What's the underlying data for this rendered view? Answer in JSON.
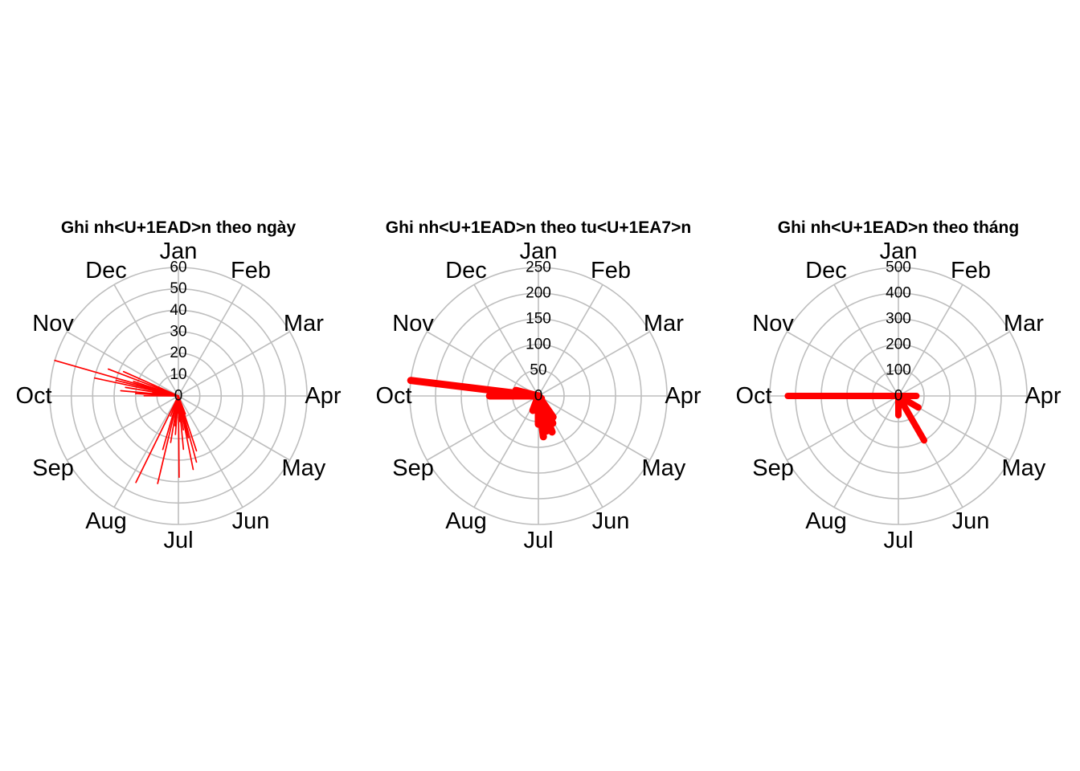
{
  "chart_data": [
    {
      "type": "line",
      "coord": "polar",
      "title": "Ghi nh<U+1EAD>n theo ngày",
      "months": [
        "Jan",
        "Feb",
        "Mar",
        "Apr",
        "May",
        "Jun",
        "Jul",
        "Aug",
        "Sep",
        "Oct",
        "Nov",
        "Dec"
      ],
      "r_ticks": [
        "0",
        "10",
        "20",
        "30",
        "40",
        "50",
        "60"
      ],
      "r_max": 60,
      "series_color": "#ff0000",
      "grid": true,
      "unit": "day",
      "data": [
        {
          "x": 162,
          "y": 9
        },
        {
          "x": 165,
          "y": 27
        },
        {
          "x": 168,
          "y": 32
        },
        {
          "x": 170,
          "y": 20
        },
        {
          "x": 172,
          "y": 35
        },
        {
          "x": 175,
          "y": 16
        },
        {
          "x": 178,
          "y": 25
        },
        {
          "x": 180,
          "y": 12
        },
        {
          "x": 183,
          "y": 38
        },
        {
          "x": 185,
          "y": 8
        },
        {
          "x": 188,
          "y": 18
        },
        {
          "x": 190,
          "y": 14
        },
        {
          "x": 193,
          "y": 22
        },
        {
          "x": 197,
          "y": 42
        },
        {
          "x": 200,
          "y": 26
        },
        {
          "x": 205,
          "y": 10
        },
        {
          "x": 210,
          "y": 45
        },
        {
          "x": 275,
          "y": 16
        },
        {
          "x": 278,
          "y": 20
        },
        {
          "x": 280,
          "y": 27
        },
        {
          "x": 282,
          "y": 12
        },
        {
          "x": 284,
          "y": 25
        },
        {
          "x": 287,
          "y": 40
        },
        {
          "x": 289,
          "y": 30
        },
        {
          "x": 291,
          "y": 60
        },
        {
          "x": 293,
          "y": 22
        },
        {
          "x": 296,
          "y": 35
        },
        {
          "x": 299,
          "y": 28
        }
      ]
    },
    {
      "type": "line",
      "coord": "polar",
      "title": "Ghi nh<U+1EAD>n theo tu<U+1EA7>n",
      "months": [
        "Jan",
        "Feb",
        "Mar",
        "Apr",
        "May",
        "Jun",
        "Jul",
        "Aug",
        "Sep",
        "Oct",
        "Nov",
        "Dec"
      ],
      "r_ticks": [
        "0",
        "50",
        "100",
        "150",
        "200",
        "250"
      ],
      "r_max": 250,
      "series_color": "#ff0000",
      "grid": true,
      "unit": "week",
      "data": [
        {
          "x": 20,
          "y": 8
        },
        {
          "x": 22,
          "y": 50
        },
        {
          "x": 23,
          "y": 60
        },
        {
          "x": 24,
          "y": 75
        },
        {
          "x": 25,
          "y": 70
        },
        {
          "x": 26,
          "y": 80
        },
        {
          "x": 27,
          "y": 55
        },
        {
          "x": 28,
          "y": 20
        },
        {
          "x": 29,
          "y": 15
        },
        {
          "x": 30,
          "y": 30
        },
        {
          "x": 40,
          "y": 95
        },
        {
          "x": 41,
          "y": 250
        },
        {
          "x": 42,
          "y": 45
        }
      ]
    },
    {
      "type": "line",
      "coord": "polar",
      "title": "Ghi nh<U+1EAD>n theo tháng",
      "months": [
        "Jan",
        "Feb",
        "Mar",
        "Apr",
        "May",
        "Jun",
        "Jul",
        "Aug",
        "Sep",
        "Oct",
        "Nov",
        "Dec"
      ],
      "r_ticks": [
        "0",
        "100",
        "200",
        "300",
        "400",
        "500"
      ],
      "r_max": 500,
      "series_color": "#ff0000",
      "grid": true,
      "unit": "month",
      "data": [
        {
          "x": 4,
          "y": 70
        },
        {
          "x": 5,
          "y": 90
        },
        {
          "x": 6,
          "y": 200
        },
        {
          "x": 7,
          "y": 75
        },
        {
          "x": 10,
          "y": 430
        }
      ]
    }
  ]
}
